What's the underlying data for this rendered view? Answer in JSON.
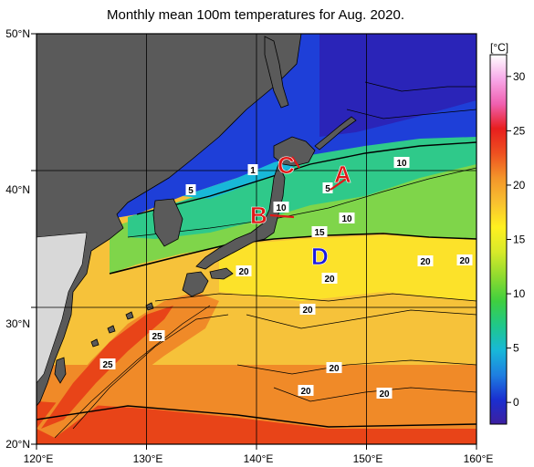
{
  "title": "Monthly mean 100m temperatures for Aug. 2020.",
  "map": {
    "lon_range": [
      120,
      160
    ],
    "lat_range": [
      20,
      50
    ],
    "lat_ticks": [
      "50°N",
      "40°N",
      "30°N",
      "20°N"
    ],
    "lon_ticks": [
      "120°E",
      "130°E",
      "140°E",
      "150°E",
      "160°E"
    ],
    "land_color": "#5a5a5a",
    "nodata_color": "#d8d8d8",
    "graticule": "black lines every 10°"
  },
  "colorbar": {
    "unit": "[°C]",
    "ticks": [
      "30",
      "25",
      "20",
      "15",
      "10",
      "5",
      "0"
    ],
    "range": [
      -2,
      32
    ],
    "colors": [
      "#3d1fa0",
      "#1a2fd0",
      "#1e7fe0",
      "#18b8d8",
      "#1fc88a",
      "#3fcf3f",
      "#8fdb2f",
      "#d8ea2a",
      "#fff020",
      "#f8c030",
      "#f4952a",
      "#ee5020",
      "#e81e1e",
      "#f060b0",
      "#f7a8e8",
      "#ffffff"
    ]
  },
  "contour_labels": {
    "north": [
      "5",
      "1",
      "10",
      "5",
      "10",
      "10",
      "15"
    ],
    "south": [
      "20",
      "20",
      "20",
      "20",
      "20",
      "20",
      "20",
      "20",
      "25",
      "25"
    ]
  },
  "markers": [
    {
      "letter": "A",
      "color": "#e01818"
    },
    {
      "letter": "B",
      "color": "#e01818"
    },
    {
      "letter": "C",
      "color": "#e01818"
    },
    {
      "letter": "D",
      "color": "#1a1ae0"
    }
  ]
}
